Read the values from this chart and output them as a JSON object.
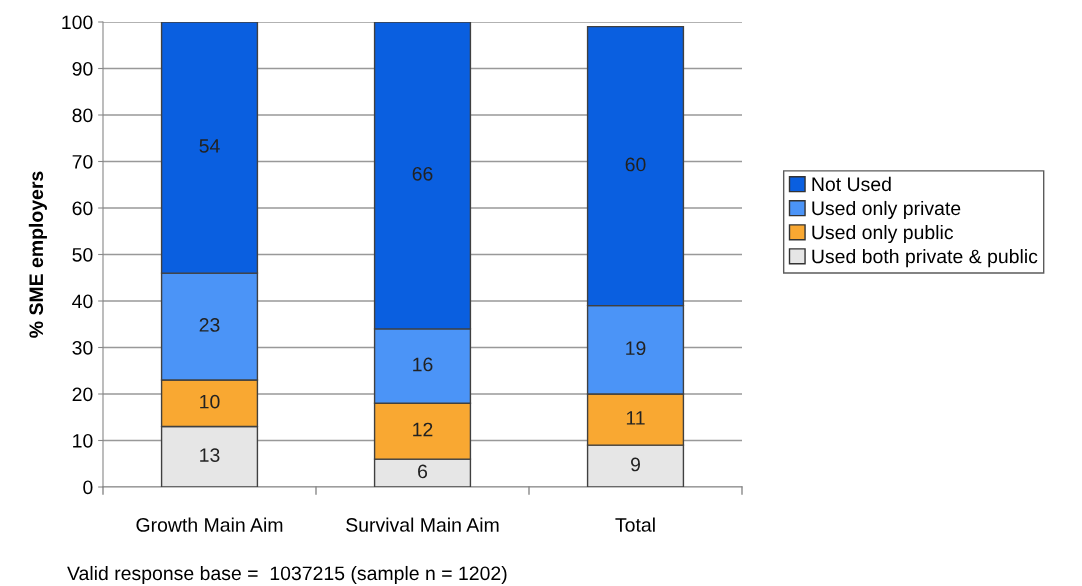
{
  "chart_data": {
    "type": "bar",
    "stacked": true,
    "ylabel": "% SME employers",
    "categories": [
      "Growth Main Aim",
      "Survival Main Aim",
      "Total"
    ],
    "series": [
      {
        "name": "Used both private & public",
        "color": "#e6e6e6",
        "values": [
          13,
          6,
          9
        ]
      },
      {
        "name": "Used only public",
        "color": "#f9a832",
        "values": [
          10,
          12,
          11
        ]
      },
      {
        "name": "Used only private",
        "color": "#4b94f7",
        "values": [
          23,
          16,
          19
        ]
      },
      {
        "name": "Not Used",
        "color": "#0a5fe0",
        "values": [
          54,
          66,
          60
        ]
      }
    ],
    "ylim": [
      0,
      100
    ],
    "yticks": [
      0,
      10,
      20,
      30,
      40,
      50,
      60,
      70,
      80,
      90,
      100
    ],
    "grid": "y",
    "legend": "right",
    "data_labels": true,
    "annotations": [
      "Valid response base =  1037215 (sample n = 1202)"
    ]
  }
}
